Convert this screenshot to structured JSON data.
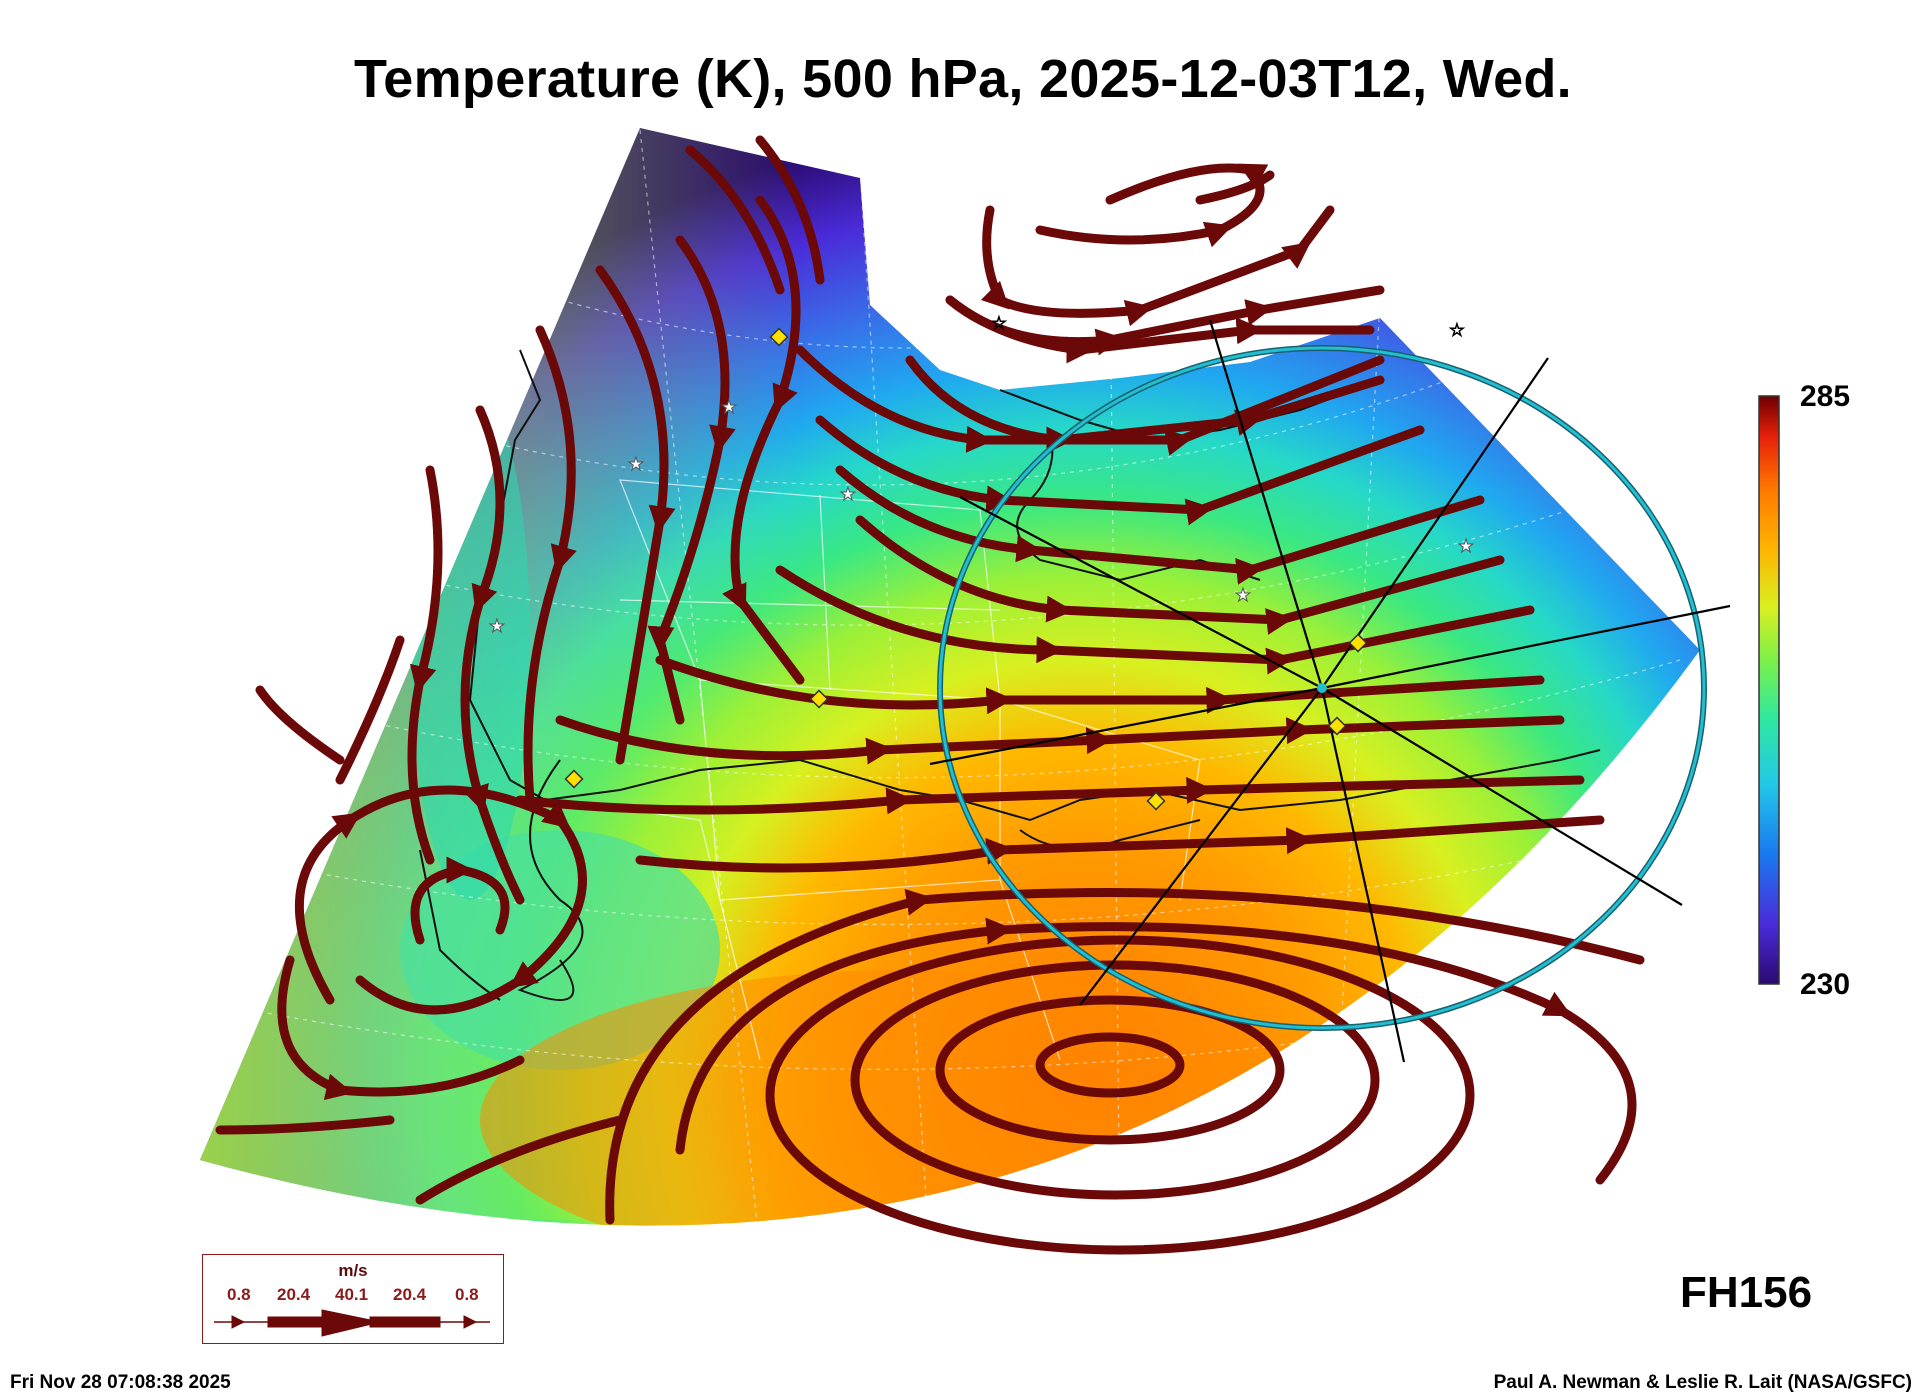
{
  "title": "Temperature (K), 500 hPa, 2025-12-03T12, Wed.",
  "colorbar": {
    "max_label": "285",
    "min_label": "230",
    "colormap": [
      "#2a0a6e",
      "#4a2bd8",
      "#1a78f0",
      "#22c8e8",
      "#2ee8a0",
      "#7cf04a",
      "#d8f020",
      "#ffb400",
      "#ff7a00",
      "#e8200a",
      "#6e0000"
    ]
  },
  "forecast_hour": "FH156",
  "timestamp": "Fri Nov 28 07:08:38 2025",
  "credit": "Paul A. Newman & Leslie R. Lait (NASA/GSFC)",
  "wind_legend": {
    "unit": "m/s",
    "values": [
      "0.8",
      "20.4",
      "40.1",
      "20.4",
      "0.8"
    ]
  },
  "colors": {
    "streamline": "#6b0808",
    "range_ring": "#20c0d0",
    "marker": "#ffe000"
  },
  "icons": [
    "star-marker-icon",
    "diamond-marker-icon",
    "arrow-icon"
  ]
}
